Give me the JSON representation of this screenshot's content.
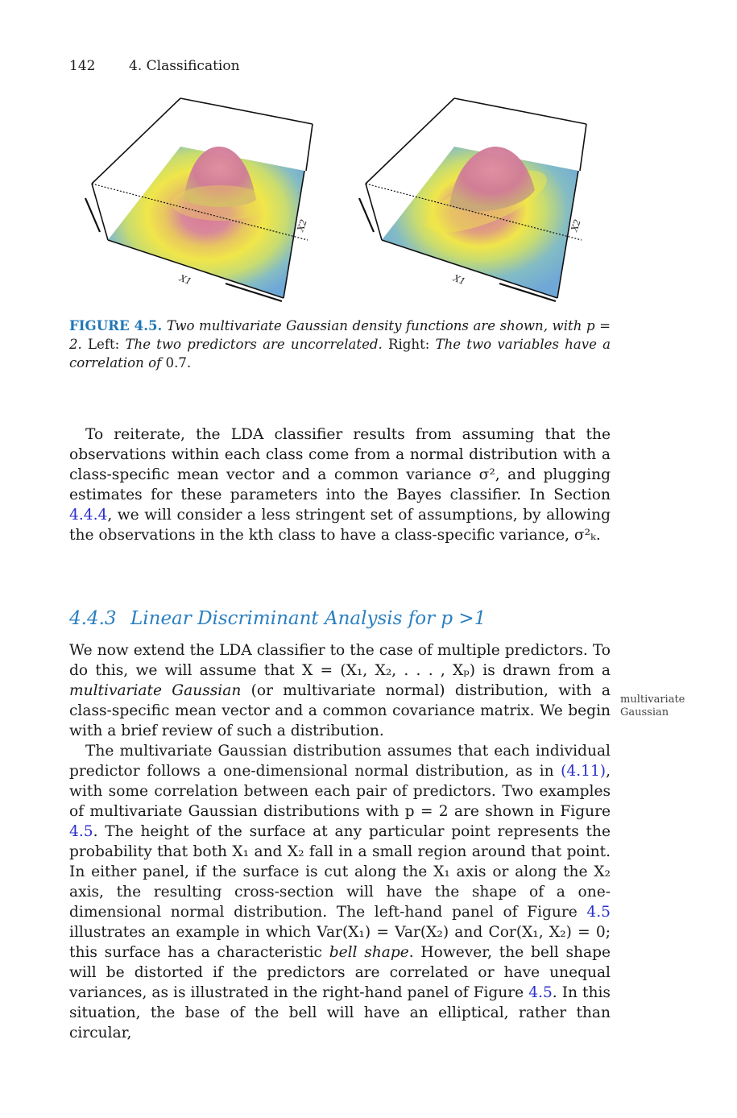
{
  "header": {
    "page_number": "142",
    "chapter": "4.  Classification"
  },
  "figure": {
    "left_panel": {
      "axis_x_label": "X1",
      "axis_y_label": "X2"
    },
    "right_panel": {
      "axis_x_label": "X1",
      "axis_y_label": "X2"
    },
    "colors": {
      "peak": "#d9789a",
      "mid": "#f0e64a",
      "base": "#6fa8d6"
    }
  },
  "caption": {
    "label": "FIGURE 4.5.",
    "text_a": "Two multivariate Gaussian density functions are shown, with",
    "text_b": "p = 2.",
    "left_word": "Left:",
    "text_c": "The two predictors are uncorrelated.",
    "right_word": "Right:",
    "text_d": "The two variables have a correlation of",
    "value": "0.7."
  },
  "para1": {
    "t1": "To reiterate, the LDA classifier results from assuming that the observations within each class come from a normal distribution with a class-specific mean vector and a common variance σ², and plugging estimates for these parameters into the Bayes classifier. In Section ",
    "link": "4.4.4",
    "t2": ", we will consider a less stringent set of assumptions, by allowing the observations in the kth class to have a class-specific variance, σ²ₖ."
  },
  "section": {
    "number": "4.4.3",
    "title": "Linear Discriminant Analysis for p >1"
  },
  "para2": {
    "t1": "We now extend the LDA classifier to the case of multiple predictors. To do this, we will assume that X = (X₁, X₂, . . . , Xₚ) is drawn from a ",
    "em": "multivariate Gaussian",
    "t2": " (or multivariate normal) distribution, with a class-specific mean vector and a common covariance matrix. We begin with a brief review of such a distribution."
  },
  "margin_note": {
    "line1": "multivariate",
    "line2": "Gaussian"
  },
  "para3": {
    "t1": "The multivariate Gaussian distribution assumes that each individual predictor follows a one-dimensional normal distribution, as in ",
    "link1": "(4.11)",
    "t2": ", with some correlation between each pair of predictors. Two examples of multivariate Gaussian distributions with p = 2 are shown in Figure ",
    "link2": "4.5",
    "t3": ". The height of the surface at any particular point represents the probability that both X₁ and X₂ fall in a small region around that point. In either panel, if the surface is cut along the X₁ axis or along the X₂ axis, the resulting cross-section will have the shape of a one-dimensional normal distribution. The left-hand panel of Figure ",
    "link3": "4.5",
    "t4": " illustrates an example in which Var(X₁) = Var(X₂) and Cor(X₁, X₂) = 0; this surface has a characteristic ",
    "em": "bell shape",
    "t5": ". However, the bell shape will be distorted if the predictors are correlated or have unequal variances, as is illustrated in the right-hand panel of Figure ",
    "link4": "4.5",
    "t6": ". In this situation, the base of the bell will have an elliptical, rather than circular,"
  }
}
